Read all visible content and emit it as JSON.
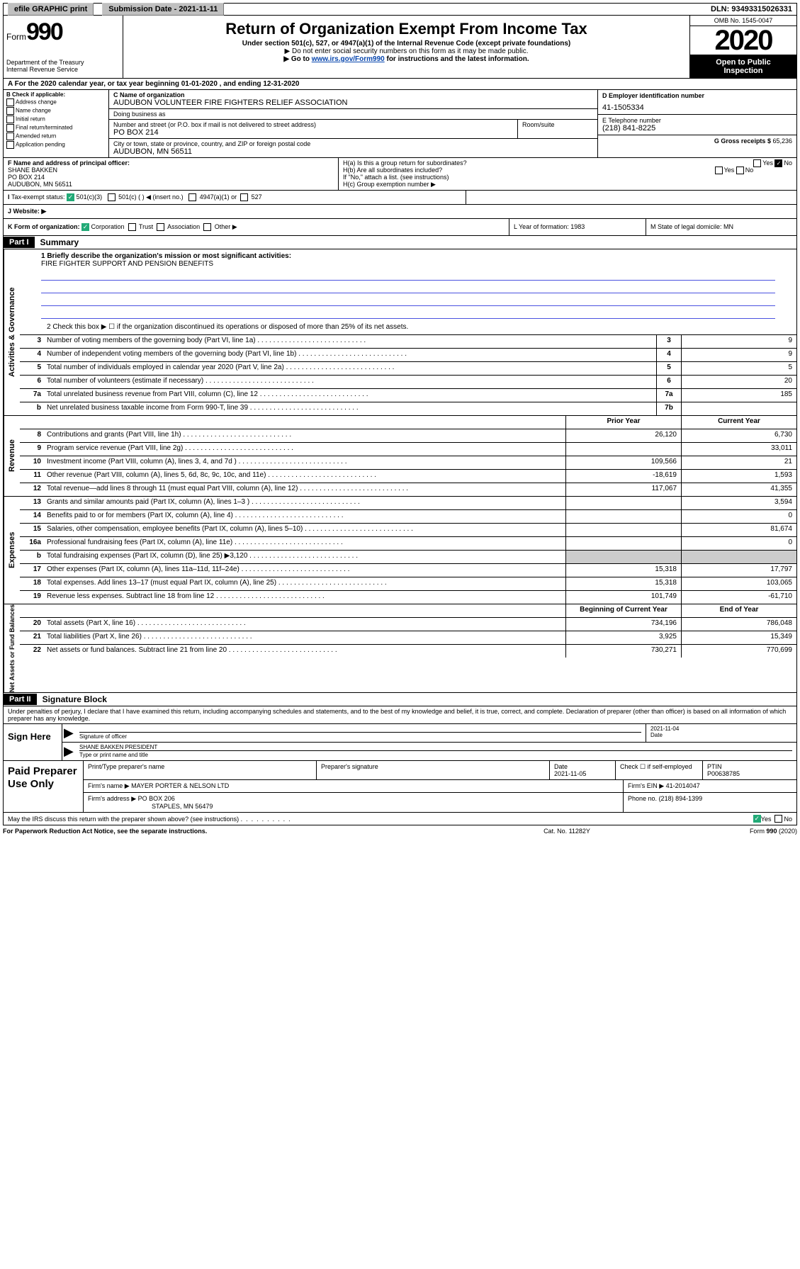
{
  "top": {
    "efile": "efile GRAPHIC print",
    "submission": "Submission Date - 2021-11-11",
    "dln": "DLN: 93493315026331"
  },
  "header": {
    "form_prefix": "Form",
    "form_number": "990",
    "dept": "Department of the Treasury",
    "irs": "Internal Revenue Service",
    "title": "Return of Organization Exempt From Income Tax",
    "sub1": "Under section 501(c), 527, or 4947(a)(1) of the Internal Revenue Code (except private foundations)",
    "sub2": "▶ Do not enter social security numbers on this form as it may be made public.",
    "sub3_pre": "▶ Go to ",
    "sub3_link": "www.irs.gov/Form990",
    "sub3_post": " for instructions and the latest information.",
    "omb": "OMB No. 1545-0047",
    "year": "2020",
    "open": "Open to Public",
    "inspection": "Inspection"
  },
  "rowA": "A For the 2020 calendar year, or tax year beginning 01-01-2020    , and ending 12-31-2020",
  "colB": {
    "label": "B Check if applicable:",
    "opts": [
      "Address change",
      "Name change",
      "Initial return",
      "Final return/terminated",
      "Amended return",
      "Application pending"
    ]
  },
  "colC": {
    "name_label": "C Name of organization",
    "name": "AUDUBON VOLUNTEER FIRE FIGHTERS RELIEF ASSOCIATION",
    "dba_label": "Doing business as",
    "dba": "",
    "street_label": "Number and street (or P.O. box if mail is not delivered to street address)",
    "street": "PO BOX 214",
    "room_label": "Room/suite",
    "city_label": "City or town, state or province, country, and ZIP or foreign postal code",
    "city": "AUDUBON, MN  56511"
  },
  "colD": {
    "ein_label": "D Employer identification number",
    "ein": "41-1505334",
    "tel_label": "E Telephone number",
    "tel": "(218) 841-8225",
    "gross_label": "G Gross receipts $",
    "gross": "65,236"
  },
  "colF": {
    "label": "F  Name and address of principal officer:",
    "name": "SHANE BAKKEN",
    "addr1": "PO BOX 214",
    "addr2": "AUDUBON, MN  56511"
  },
  "colH": {
    "a": "H(a)  Is this a group return for subordinates?",
    "b": "H(b)  Are all subordinates included?",
    "b_note": "If \"No,\" attach a list. (see instructions)",
    "c": "H(c)  Group exemption number ▶",
    "yes": "Yes",
    "no": "No"
  },
  "rowI": {
    "label": "Tax-exempt status:",
    "o1": "501(c)(3)",
    "o2": "501(c) (   ) ◀ (insert no.)",
    "o3": "4947(a)(1) or",
    "o4": "527"
  },
  "rowJ": "J    Website: ▶",
  "rowK": {
    "label": "K Form of organization:",
    "corp": "Corporation",
    "trust": "Trust",
    "assoc": "Association",
    "other": "Other ▶"
  },
  "rowL": "L Year of formation: 1983",
  "rowM": "M State of legal domicile: MN",
  "part1": {
    "label": "Part I",
    "title": "Summary",
    "line1_label": "1  Briefly describe the organization's mission or most significant activities:",
    "mission": "FIRE FIGHTER SUPPORT AND PENSION BENEFITS",
    "line2": "2    Check this box ▶ ☐  if the organization discontinued its operations or disposed of more than 25% of its net assets."
  },
  "sections": {
    "gov": "Activities & Governance",
    "rev": "Revenue",
    "exp": "Expenses",
    "net": "Net Assets or Fund Balances"
  },
  "table": {
    "prior": "Prior Year",
    "current": "Current Year",
    "begin": "Beginning of Current Year",
    "end": "End of Year",
    "rows_gov": [
      {
        "n": "3",
        "d": "Number of voting members of the governing body (Part VI, line 1a)",
        "nc": "3",
        "v": "9"
      },
      {
        "n": "4",
        "d": "Number of independent voting members of the governing body (Part VI, line 1b)",
        "nc": "4",
        "v": "9"
      },
      {
        "n": "5",
        "d": "Total number of individuals employed in calendar year 2020 (Part V, line 2a)",
        "nc": "5",
        "v": "5"
      },
      {
        "n": "6",
        "d": "Total number of volunteers (estimate if necessary)",
        "nc": "6",
        "v": "20"
      },
      {
        "n": "7a",
        "d": "Total unrelated business revenue from Part VIII, column (C), line 12",
        "nc": "7a",
        "v": "185"
      },
      {
        "n": "b",
        "d": "Net unrelated business taxable income from Form 990-T, line 39",
        "nc": "7b",
        "v": ""
      }
    ],
    "rows_rev": [
      {
        "n": "8",
        "d": "Contributions and grants (Part VIII, line 1h)",
        "p": "26,120",
        "c": "6,730"
      },
      {
        "n": "9",
        "d": "Program service revenue (Part VIII, line 2g)",
        "p": "",
        "c": "33,011"
      },
      {
        "n": "10",
        "d": "Investment income (Part VIII, column (A), lines 3, 4, and 7d )",
        "p": "109,566",
        "c": "21"
      },
      {
        "n": "11",
        "d": "Other revenue (Part VIII, column (A), lines 5, 6d, 8c, 9c, 10c, and 11e)",
        "p": "-18,619",
        "c": "1,593"
      },
      {
        "n": "12",
        "d": "Total revenue—add lines 8 through 11 (must equal Part VIII, column (A), line 12)",
        "p": "117,067",
        "c": "41,355"
      }
    ],
    "rows_exp": [
      {
        "n": "13",
        "d": "Grants and similar amounts paid (Part IX, column (A), lines 1–3 )",
        "p": "",
        "c": "3,594"
      },
      {
        "n": "14",
        "d": "Benefits paid to or for members (Part IX, column (A), line 4)",
        "p": "",
        "c": "0"
      },
      {
        "n": "15",
        "d": "Salaries, other compensation, employee benefits (Part IX, column (A), lines 5–10)",
        "p": "",
        "c": "81,674"
      },
      {
        "n": "16a",
        "d": "Professional fundraising fees (Part IX, column (A), line 11e)",
        "p": "",
        "c": "0"
      },
      {
        "n": "b",
        "d": "Total fundraising expenses (Part IX, column (D), line 25) ▶3,120",
        "p": "shade",
        "c": "shade"
      },
      {
        "n": "17",
        "d": "Other expenses (Part IX, column (A), lines 11a–11d, 11f–24e)",
        "p": "15,318",
        "c": "17,797"
      },
      {
        "n": "18",
        "d": "Total expenses. Add lines 13–17 (must equal Part IX, column (A), line 25)",
        "p": "15,318",
        "c": "103,065"
      },
      {
        "n": "19",
        "d": "Revenue less expenses. Subtract line 18 from line 12",
        "p": "101,749",
        "c": "-61,710"
      }
    ],
    "rows_net": [
      {
        "n": "20",
        "d": "Total assets (Part X, line 16)",
        "p": "734,196",
        "c": "786,048"
      },
      {
        "n": "21",
        "d": "Total liabilities (Part X, line 26)",
        "p": "3,925",
        "c": "15,349"
      },
      {
        "n": "22",
        "d": "Net assets or fund balances. Subtract line 21 from line 20",
        "p": "730,271",
        "c": "770,699"
      }
    ]
  },
  "part2": {
    "label": "Part II",
    "title": "Signature Block",
    "penalty": "Under penalties of perjury, I declare that I have examined this return, including accompanying schedules and statements, and to the best of my knowledge and belief, it is true, correct, and complete. Declaration of preparer (other than officer) is based on all information of which preparer has any knowledge."
  },
  "sign": {
    "label": "Sign Here",
    "sig_label": "Signature of officer",
    "date": "2021-11-04",
    "date_label": "Date",
    "name": "SHANE BAKKEN PRESIDENT",
    "name_label": "Type or print name and title"
  },
  "paid": {
    "label": "Paid Preparer Use Only",
    "h1": "Print/Type preparer's name",
    "h2": "Preparer's signature",
    "h3": "Date",
    "date": "2021-11-05",
    "h4": "Check ☐ if self-employed",
    "h5": "PTIN",
    "ptin": "P00638785",
    "firm_label": "Firm's name    ▶",
    "firm": "MAYER PORTER & NELSON LTD",
    "ein_label": "Firm's EIN ▶",
    "ein": "41-2014047",
    "addr_label": "Firm's address ▶",
    "addr1": "PO BOX 206",
    "addr2": "STAPLES, MN  56479",
    "phone_label": "Phone no.",
    "phone": "(218) 894-1399"
  },
  "footer": {
    "discuss": "May the IRS discuss this return with the preparer shown above? (see instructions)",
    "yes": "Yes",
    "no": "No",
    "paperwork": "For Paperwork Reduction Act Notice, see the separate instructions.",
    "cat": "Cat. No. 11282Y",
    "form": "Form 990 (2020)"
  }
}
